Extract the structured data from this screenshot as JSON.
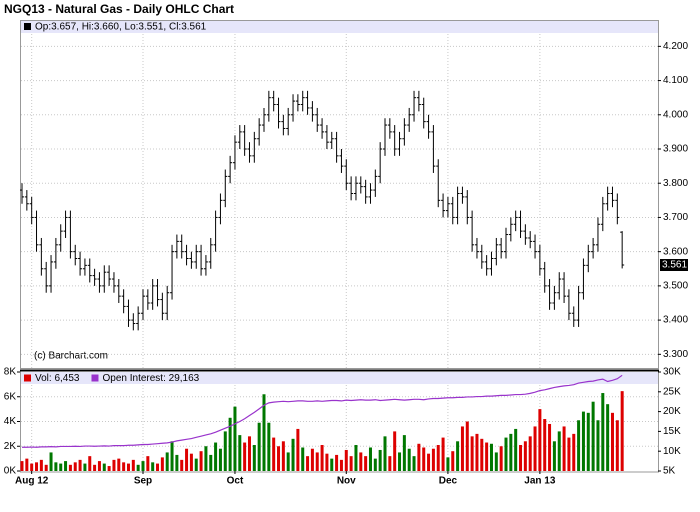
{
  "chart_data": [
    {
      "type": "ohlc",
      "title": "NGQ13 - Natural Gas - Daily OHLC Chart",
      "legend": "Op:3.657, Hi:3.660, Lo:3.551, Cl:3.561",
      "annotation": "(c) Barchart.com",
      "color": "#000000",
      "grid": true,
      "open": [
        3.78,
        3.76,
        3.74,
        3.7,
        3.62,
        3.55,
        3.5,
        3.57,
        3.62,
        3.66,
        3.7,
        3.6,
        3.58,
        3.55,
        3.56,
        3.53,
        3.52,
        3.5,
        3.54,
        3.52,
        3.5,
        3.47,
        3.44,
        3.4,
        3.39,
        3.42,
        3.47,
        3.45,
        3.5,
        3.46,
        3.42,
        3.48,
        3.6,
        3.63,
        3.6,
        3.58,
        3.57,
        3.6,
        3.55,
        3.57,
        3.62,
        3.7,
        3.75,
        3.82,
        3.86,
        3.92,
        3.95,
        3.9,
        3.88,
        3.93,
        3.97,
        4.0,
        4.05,
        4.03,
        3.98,
        3.96,
        4.0,
        4.04,
        4.03,
        4.05,
        4.02,
        4.0,
        3.97,
        3.95,
        3.92,
        3.93,
        3.88,
        3.85,
        3.8,
        3.77,
        3.8,
        3.79,
        3.76,
        3.78,
        3.82,
        3.9,
        3.97,
        3.95,
        3.9,
        3.93,
        3.97,
        4.0,
        4.05,
        4.03,
        3.98,
        3.95,
        3.85,
        3.75,
        3.72,
        3.74,
        3.7,
        3.77,
        3.76,
        3.7,
        3.62,
        3.6,
        3.57,
        3.55,
        3.58,
        3.62,
        3.6,
        3.65,
        3.68,
        3.7,
        3.66,
        3.64,
        3.63,
        3.6,
        3.55,
        3.5,
        3.45,
        3.48,
        3.52,
        3.47,
        3.42,
        3.4,
        3.48,
        3.56,
        3.6,
        3.62,
        3.68,
        3.74,
        3.77,
        3.75,
        3.657
      ],
      "high": [
        3.8,
        3.78,
        3.76,
        3.72,
        3.64,
        3.57,
        3.59,
        3.64,
        3.68,
        3.72,
        3.72,
        3.62,
        3.6,
        3.58,
        3.58,
        3.55,
        3.54,
        3.56,
        3.56,
        3.54,
        3.52,
        3.49,
        3.46,
        3.42,
        3.44,
        3.49,
        3.49,
        3.52,
        3.52,
        3.48,
        3.5,
        3.62,
        3.65,
        3.65,
        3.62,
        3.6,
        3.62,
        3.62,
        3.59,
        3.64,
        3.72,
        3.77,
        3.84,
        3.88,
        3.94,
        3.97,
        3.97,
        3.92,
        3.95,
        3.99,
        4.02,
        4.07,
        4.07,
        4.05,
        4.0,
        4.02,
        4.06,
        4.06,
        4.07,
        4.07,
        4.04,
        4.02,
        3.99,
        3.97,
        3.95,
        3.95,
        3.9,
        3.87,
        3.82,
        3.82,
        3.82,
        3.81,
        3.8,
        3.84,
        3.92,
        3.99,
        3.99,
        3.97,
        3.95,
        3.99,
        4.02,
        4.07,
        4.07,
        4.05,
        4.0,
        3.97,
        3.87,
        3.77,
        3.76,
        3.76,
        3.79,
        3.79,
        3.78,
        3.72,
        3.64,
        3.62,
        3.59,
        3.6,
        3.64,
        3.64,
        3.67,
        3.7,
        3.72,
        3.72,
        3.68,
        3.66,
        3.65,
        3.62,
        3.57,
        3.52,
        3.5,
        3.54,
        3.54,
        3.49,
        3.44,
        3.5,
        3.58,
        3.62,
        3.64,
        3.7,
        3.76,
        3.79,
        3.79,
        3.77,
        3.66
      ],
      "low": [
        3.74,
        3.72,
        3.68,
        3.6,
        3.53,
        3.48,
        3.48,
        3.55,
        3.6,
        3.64,
        3.58,
        3.56,
        3.53,
        3.53,
        3.51,
        3.5,
        3.48,
        3.48,
        3.5,
        3.48,
        3.45,
        3.42,
        3.38,
        3.37,
        3.37,
        3.4,
        3.43,
        3.43,
        3.44,
        3.4,
        3.4,
        3.46,
        3.58,
        3.58,
        3.56,
        3.55,
        3.55,
        3.53,
        3.53,
        3.55,
        3.6,
        3.68,
        3.73,
        3.8,
        3.84,
        3.9,
        3.88,
        3.86,
        3.86,
        3.91,
        3.95,
        3.98,
        4.01,
        3.96,
        3.94,
        3.94,
        3.98,
        4.01,
        4.01,
        4.0,
        3.98,
        3.95,
        3.93,
        3.9,
        3.9,
        3.86,
        3.83,
        3.78,
        3.75,
        3.75,
        3.77,
        3.74,
        3.74,
        3.76,
        3.8,
        3.88,
        3.93,
        3.88,
        3.88,
        3.91,
        3.95,
        3.98,
        4.01,
        3.96,
        3.93,
        3.83,
        3.73,
        3.7,
        3.7,
        3.68,
        3.68,
        3.74,
        3.68,
        3.6,
        3.58,
        3.55,
        3.53,
        3.53,
        3.56,
        3.58,
        3.58,
        3.63,
        3.66,
        3.64,
        3.62,
        3.61,
        3.58,
        3.53,
        3.48,
        3.43,
        3.43,
        3.46,
        3.45,
        3.4,
        3.38,
        3.38,
        3.46,
        3.54,
        3.58,
        3.6,
        3.66,
        3.72,
        3.73,
        3.68,
        3.551
      ],
      "close": [
        3.76,
        3.74,
        3.7,
        3.62,
        3.55,
        3.5,
        3.57,
        3.62,
        3.66,
        3.7,
        3.6,
        3.58,
        3.55,
        3.56,
        3.53,
        3.52,
        3.5,
        3.54,
        3.52,
        3.5,
        3.47,
        3.44,
        3.4,
        3.39,
        3.42,
        3.47,
        3.45,
        3.5,
        3.46,
        3.42,
        3.48,
        3.6,
        3.63,
        3.6,
        3.58,
        3.57,
        3.6,
        3.55,
        3.57,
        3.62,
        3.7,
        3.75,
        3.82,
        3.86,
        3.92,
        3.95,
        3.9,
        3.88,
        3.93,
        3.97,
        4.0,
        4.05,
        4.03,
        3.98,
        3.96,
        4.0,
        4.04,
        4.03,
        4.05,
        4.02,
        4.0,
        3.97,
        3.95,
        3.92,
        3.93,
        3.88,
        3.85,
        3.8,
        3.77,
        3.8,
        3.79,
        3.76,
        3.78,
        3.82,
        3.9,
        3.97,
        3.95,
        3.9,
        3.93,
        3.97,
        4.0,
        4.05,
        4.03,
        3.98,
        3.95,
        3.85,
        3.75,
        3.72,
        3.74,
        3.7,
        3.77,
        3.76,
        3.7,
        3.62,
        3.6,
        3.57,
        3.55,
        3.58,
        3.62,
        3.6,
        3.65,
        3.68,
        3.7,
        3.66,
        3.64,
        3.63,
        3.6,
        3.55,
        3.5,
        3.45,
        3.48,
        3.52,
        3.47,
        3.42,
        3.4,
        3.48,
        3.56,
        3.6,
        3.62,
        3.68,
        3.74,
        3.77,
        3.75,
        3.7,
        3.561
      ],
      "ylim": [
        3.26,
        4.277
      ],
      "yticks": [
        {
          "value": 3.3,
          "label": "3.300"
        },
        {
          "value": 3.4,
          "label": "3.400"
        },
        {
          "value": 3.5,
          "label": "3.500"
        },
        {
          "value": 3.6,
          "label": "3.600"
        },
        {
          "value": 3.7,
          "label": "3.700"
        },
        {
          "value": 3.8,
          "label": "3.800"
        },
        {
          "value": 3.9,
          "label": "3.900"
        },
        {
          "value": 4.0,
          "label": "4.000"
        },
        {
          "value": 4.1,
          "label": "4.100"
        },
        {
          "value": 4.2,
          "label": "4.200"
        }
      ]
    },
    {
      "type": "volume",
      "grid": true,
      "categories": [
        null,
        null,
        "Aug 12",
        null,
        null,
        null,
        null,
        null,
        null,
        null,
        null,
        null,
        null,
        null,
        null,
        null,
        null,
        null,
        null,
        null,
        null,
        null,
        null,
        null,
        null,
        "Sep",
        null,
        null,
        null,
        null,
        null,
        null,
        null,
        null,
        null,
        null,
        null,
        null,
        null,
        null,
        null,
        null,
        null,
        null,
        "Oct",
        null,
        null,
        null,
        null,
        null,
        null,
        null,
        null,
        null,
        null,
        null,
        null,
        null,
        null,
        null,
        null,
        null,
        null,
        null,
        null,
        null,
        null,
        "Nov",
        null,
        null,
        null,
        null,
        null,
        null,
        null,
        null,
        null,
        null,
        null,
        null,
        null,
        null,
        null,
        null,
        null,
        null,
        null,
        null,
        "Dec",
        null,
        null,
        null,
        null,
        null,
        null,
        null,
        null,
        null,
        null,
        null,
        null,
        null,
        null,
        null,
        null,
        null,
        null,
        "Jan 13",
        null,
        null,
        null,
        null,
        null,
        null,
        null,
        null,
        null,
        null,
        null,
        null,
        null,
        null,
        null,
        null,
        null
      ],
      "series": [
        {
          "name": "Vol: 6,453",
          "color": "#dd0000",
          "up_color": "#007700",
          "values": [
            800,
            1000,
            600,
            700,
            900,
            500,
            1500,
            700,
            600,
            800,
            500,
            700,
            900,
            600,
            1200,
            500,
            800,
            600,
            400,
            900,
            1000,
            700,
            600,
            900,
            500,
            800,
            1200,
            700,
            600,
            1100,
            1500,
            2400,
            1300,
            900,
            1800,
            1400,
            1000,
            1600,
            2000,
            1300,
            2300,
            1800,
            3200,
            4300,
            5200,
            2900,
            2300,
            2800,
            2100,
            3900,
            6200,
            3900,
            2700,
            2000,
            2400,
            1500,
            2600,
            3400,
            1900,
            1200,
            1800,
            1500,
            2100,
            1400,
            1000,
            1300,
            900,
            1700,
            1200,
            2100,
            1500,
            1200,
            1900,
            1000,
            1700,
            2800,
            1200,
            3200,
            1500,
            2900,
            1800,
            1200,
            2200,
            1900,
            1400,
            1800,
            2100,
            2700,
            1100,
            1600,
            2400,
            3600,
            4000,
            2800,
            3000,
            2600,
            2300,
            2200,
            1500,
            2000,
            2700,
            3000,
            3400,
            2100,
            2400,
            2800,
            3600,
            5000,
            4200,
            3800,
            2400,
            3200,
            3600,
            2700,
            3000,
            4100,
            4800,
            4700,
            5600,
            4100,
            6300,
            5400,
            4700,
            4100,
            6453
          ]
        },
        {
          "name": "Open Interest: 29,163",
          "color": "#9933cc",
          "axis": "y2",
          "values": [
            11000,
            11000,
            11050,
            11000,
            11100,
            11100,
            11150,
            11100,
            11200,
            11200,
            11200,
            11250,
            11200,
            11300,
            11300,
            11250,
            11300,
            11350,
            11300,
            11400,
            11400,
            11400,
            11500,
            11500,
            11600,
            11700,
            11700,
            11800,
            11900,
            12000,
            12100,
            12300,
            12600,
            12800,
            13000,
            13200,
            13500,
            13800,
            14100,
            14400,
            14800,
            15300,
            15800,
            16300,
            16900,
            17500,
            18200,
            19000,
            19800,
            20700,
            21600,
            22200,
            22400,
            22500,
            22600,
            22500,
            22600,
            22700,
            22700,
            22600,
            22600,
            22700,
            22600,
            22700,
            22800,
            22800,
            22700,
            22900,
            22800,
            22900,
            23000,
            22900,
            22900,
            23000,
            22800,
            22900,
            23000,
            23100,
            23000,
            22900,
            23000,
            23100,
            23100,
            23000,
            23200,
            23300,
            23300,
            23400,
            23500,
            23500,
            23600,
            23600,
            23700,
            23700,
            23800,
            23800,
            23900,
            23900,
            24000,
            24100,
            24100,
            24200,
            24300,
            24300,
            24400,
            24600,
            24900,
            25300,
            25500,
            25800,
            26100,
            26300,
            26500,
            26600,
            26800,
            27200,
            27400,
            27600,
            27700,
            28000,
            28200,
            27600,
            27900,
            28300,
            29163
          ]
        }
      ],
      "ylim": [
        0,
        8000
      ],
      "yticks": [
        {
          "value": 0,
          "label": "0K"
        },
        {
          "value": 2000,
          "label": "2K"
        },
        {
          "value": 4000,
          "label": "4K"
        },
        {
          "value": 6000,
          "label": "6K"
        },
        {
          "value": 8000,
          "label": "8K"
        }
      ],
      "y2lim": [
        5000,
        30000
      ],
      "y2ticks": [
        {
          "value": 5000,
          "label": "5K"
        },
        {
          "value": 10000,
          "label": "10K"
        },
        {
          "value": 15000,
          "label": "15K"
        },
        {
          "value": 20000,
          "label": "20K"
        },
        {
          "value": 25000,
          "label": "25K"
        },
        {
          "value": 30000,
          "label": "30K"
        }
      ]
    }
  ]
}
